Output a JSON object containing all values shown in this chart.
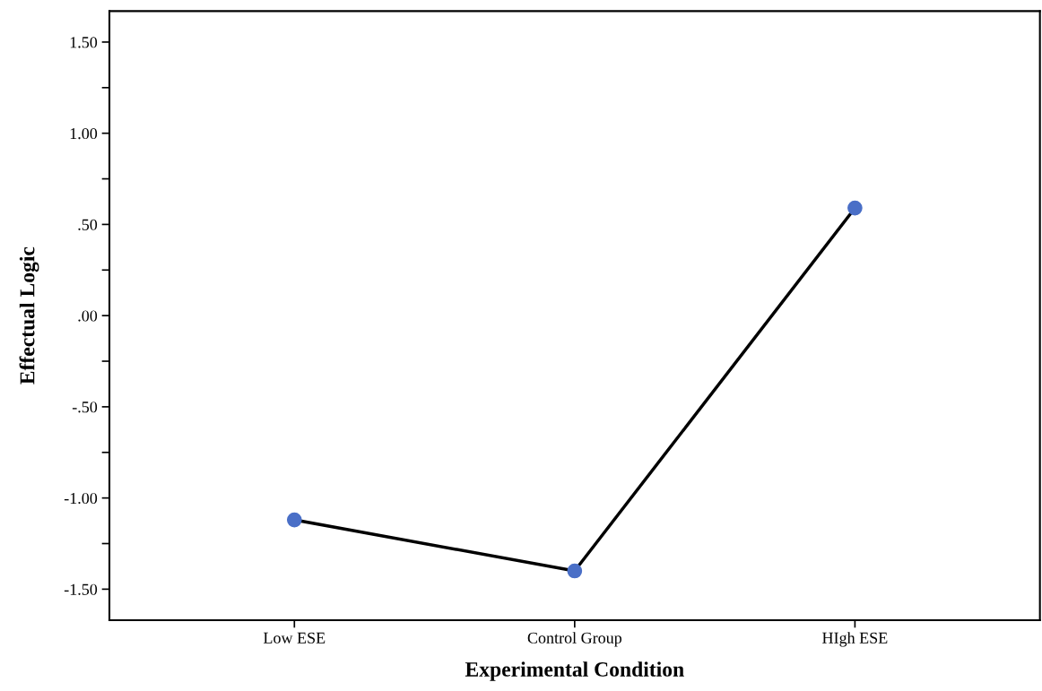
{
  "chart_data": {
    "type": "line",
    "xlabel": "Experimental Condition",
    "ylabel": "Effectual Logic",
    "categories": [
      "Low ESE",
      "Control Group",
      "HIgh ESE"
    ],
    "series": [
      {
        "color": "#4a6fc7",
        "values": [
          -1.12,
          -1.4,
          0.59
        ]
      }
    ],
    "ylim": [
      -1.67,
      1.67
    ],
    "yticks": [
      {
        "value": -1.5,
        "label": "-1.50"
      },
      {
        "value": -1.25,
        "label": null
      },
      {
        "value": -1.0,
        "label": "-1.00"
      },
      {
        "value": -0.75,
        "label": null
      },
      {
        "value": -0.5,
        "label": "-.50"
      },
      {
        "value": -0.25,
        "label": null
      },
      {
        "value": 0,
        "label": ".00"
      },
      {
        "value": 0.25,
        "label": null
      },
      {
        "value": 0.5,
        "label": ".50"
      },
      {
        "value": 0.75,
        "label": null
      },
      {
        "value": 1.0,
        "label": "1.00"
      },
      {
        "value": 1.25,
        "label": null
      },
      {
        "value": 1.5,
        "label": "1.50"
      }
    ],
    "marker": "circle",
    "line_style": "solid",
    "grid": false,
    "legend": false
  }
}
